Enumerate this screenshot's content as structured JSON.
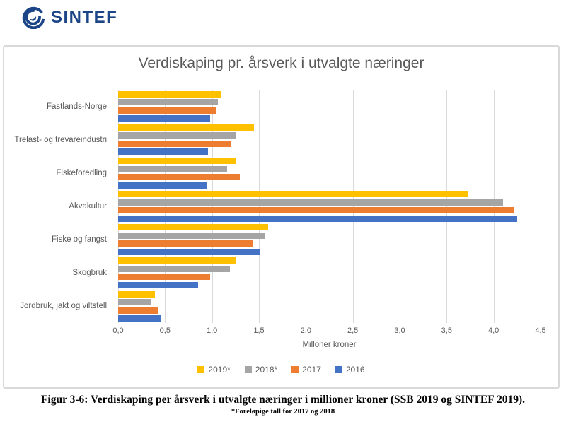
{
  "logo": {
    "text": "SINTEF",
    "color": "#1c4587"
  },
  "chart_data": {
    "type": "bar",
    "orientation": "horizontal",
    "title": "Verdiskaping pr. årsverk i utvalgte næringer",
    "xlabel": "Milloner kroner",
    "xlim": [
      0,
      4.5
    ],
    "tick_values": [
      0,
      0.5,
      1,
      1.5,
      2,
      2.5,
      3,
      3.5,
      4,
      4.5
    ],
    "tick_labels": [
      "0,0",
      "0,5",
      "1,0",
      "1,5",
      "2,0",
      "2,5",
      "3,0",
      "3,5",
      "4,0",
      "4,5"
    ],
    "grid": true,
    "legend_position": "bottom",
    "categories": [
      "Fastlands-Norge",
      "Trelast- og trevareindustri",
      "Fiskeforedling",
      "Akvakultur",
      "Fiske og fangst",
      "Skogbruk",
      "Jordbruk, jakt og viltstell"
    ],
    "series": [
      {
        "name": "2019*",
        "color": "#FFC000",
        "values": [
          1.1,
          1.45,
          1.25,
          3.73,
          1.6,
          1.26,
          0.39
        ]
      },
      {
        "name": "2018*",
        "color": "#A5A5A5",
        "values": [
          1.06,
          1.25,
          1.16,
          4.1,
          1.57,
          1.19,
          0.35
        ]
      },
      {
        "name": "2017",
        "color": "#ED7D31",
        "values": [
          1.04,
          1.2,
          1.3,
          4.22,
          1.44,
          0.98,
          0.42
        ]
      },
      {
        "name": "2016",
        "color": "#4472C4",
        "values": [
          0.98,
          0.96,
          0.94,
          4.25,
          1.51,
          0.85,
          0.45
        ]
      }
    ]
  },
  "caption": {
    "line1": "Figur 3-6: Verdiskaping per årsverk i utvalgte næringer i millioner kroner (SSB 2019 og SINTEF 2019).",
    "line2": "*Foreløpige tall for 2017 og 2018"
  }
}
